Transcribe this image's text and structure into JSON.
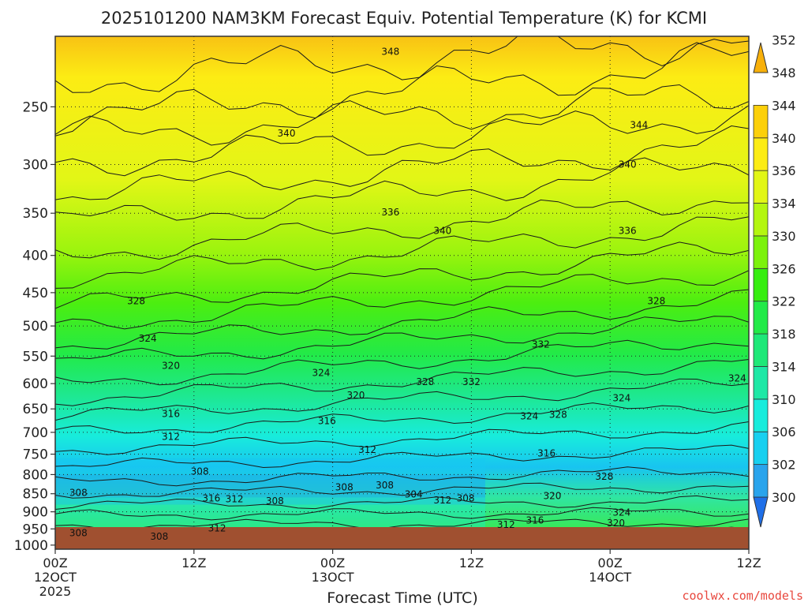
{
  "chart_data": {
    "type": "heatmap",
    "title": "2025101200 NAM3KM Forecast Equiv. Potential Temperature (K) for KCMI",
    "xlabel": "Forecast Time (UTC)",
    "ylabel": "",
    "x_ticks": [
      {
        "hour": 0,
        "label": "00Z",
        "sub1": "12OCT",
        "sub2": "2025"
      },
      {
        "hour": 12,
        "label": "12Z",
        "sub1": "",
        "sub2": ""
      },
      {
        "hour": 24,
        "label": "00Z",
        "sub1": "13OCT",
        "sub2": ""
      },
      {
        "hour": 36,
        "label": "12Z",
        "sub1": "",
        "sub2": ""
      },
      {
        "hour": 48,
        "label": "00Z",
        "sub1": "14OCT",
        "sub2": ""
      },
      {
        "hour": 60,
        "label": "12Z",
        "sub1": "",
        "sub2": ""
      }
    ],
    "xlim_hours": [
      0,
      60
    ],
    "y_ticks": [
      250,
      300,
      350,
      400,
      450,
      500,
      550,
      600,
      650,
      700,
      750,
      800,
      850,
      900,
      950,
      1000
    ],
    "ylim_hpa": [
      200,
      1013
    ],
    "y_scale": "log-pressure",
    "grid": true,
    "colorbar": {
      "levels": [
        300,
        302,
        306,
        310,
        314,
        318,
        322,
        326,
        330,
        334,
        336,
        340,
        344,
        348,
        352
      ],
      "colors": [
        "#1f6fe8",
        "#2aa4ec",
        "#18d0f0",
        "#18ecdc",
        "#1ee8a6",
        "#1ee878",
        "#22ea48",
        "#36ee10",
        "#7cf20c",
        "#b4f610",
        "#e2f616",
        "#fcec14",
        "#fcd00a",
        "#f8b00a"
      ]
    },
    "contour_labels": [
      {
        "hour": 29,
        "p": 210,
        "value": "348"
      },
      {
        "hour": 50.5,
        "p": 265,
        "value": "344"
      },
      {
        "hour": 20,
        "p": 272,
        "value": "340"
      },
      {
        "hour": 49.5,
        "p": 300,
        "value": "340"
      },
      {
        "hour": 29,
        "p": 349,
        "value": "336"
      },
      {
        "hour": 33.5,
        "p": 370,
        "value": "340"
      },
      {
        "hour": 49.5,
        "p": 370,
        "value": "336"
      },
      {
        "hour": 7,
        "p": 462,
        "value": "328"
      },
      {
        "hour": 52,
        "p": 462,
        "value": "328"
      },
      {
        "hour": 8,
        "p": 520,
        "value": "324"
      },
      {
        "hour": 42,
        "p": 530,
        "value": "332"
      },
      {
        "hour": 10,
        "p": 567,
        "value": "320"
      },
      {
        "hour": 23,
        "p": 580,
        "value": "324"
      },
      {
        "hour": 32,
        "p": 597,
        "value": "328"
      },
      {
        "hour": 36,
        "p": 597,
        "value": "332"
      },
      {
        "hour": 59,
        "p": 590,
        "value": "324"
      },
      {
        "hour": 26,
        "p": 623,
        "value": "320"
      },
      {
        "hour": 49,
        "p": 628,
        "value": "324"
      },
      {
        "hour": 10,
        "p": 660,
        "value": "316"
      },
      {
        "hour": 41,
        "p": 665,
        "value": "324"
      },
      {
        "hour": 43.5,
        "p": 662,
        "value": "328"
      },
      {
        "hour": 23.5,
        "p": 675,
        "value": "316"
      },
      {
        "hour": 10,
        "p": 710,
        "value": "312"
      },
      {
        "hour": 27,
        "p": 740,
        "value": "312"
      },
      {
        "hour": 42.5,
        "p": 748,
        "value": "316"
      },
      {
        "hour": 12.5,
        "p": 792,
        "value": "308"
      },
      {
        "hour": 47.5,
        "p": 805,
        "value": "328"
      },
      {
        "hour": 2,
        "p": 847,
        "value": "308"
      },
      {
        "hour": 25,
        "p": 833,
        "value": "308"
      },
      {
        "hour": 28.5,
        "p": 828,
        "value": "308"
      },
      {
        "hour": 31,
        "p": 852,
        "value": "304"
      },
      {
        "hour": 13.5,
        "p": 862,
        "value": "316"
      },
      {
        "hour": 15.5,
        "p": 865,
        "value": "312"
      },
      {
        "hour": 19,
        "p": 870,
        "value": "308"
      },
      {
        "hour": 33.5,
        "p": 868,
        "value": "312"
      },
      {
        "hour": 35.5,
        "p": 862,
        "value": "308"
      },
      {
        "hour": 43,
        "p": 856,
        "value": "320"
      },
      {
        "hour": 49,
        "p": 902,
        "value": "324"
      },
      {
        "hour": 41.5,
        "p": 925,
        "value": "316"
      },
      {
        "hour": 39,
        "p": 938,
        "value": "312"
      },
      {
        "hour": 48.5,
        "p": 933,
        "value": "320"
      },
      {
        "hour": 14,
        "p": 948,
        "value": "312"
      },
      {
        "hour": 2,
        "p": 962,
        "value": "308"
      },
      {
        "hour": 9,
        "p": 973,
        "value": "308"
      }
    ]
  },
  "credit": "coolwx.com/models"
}
